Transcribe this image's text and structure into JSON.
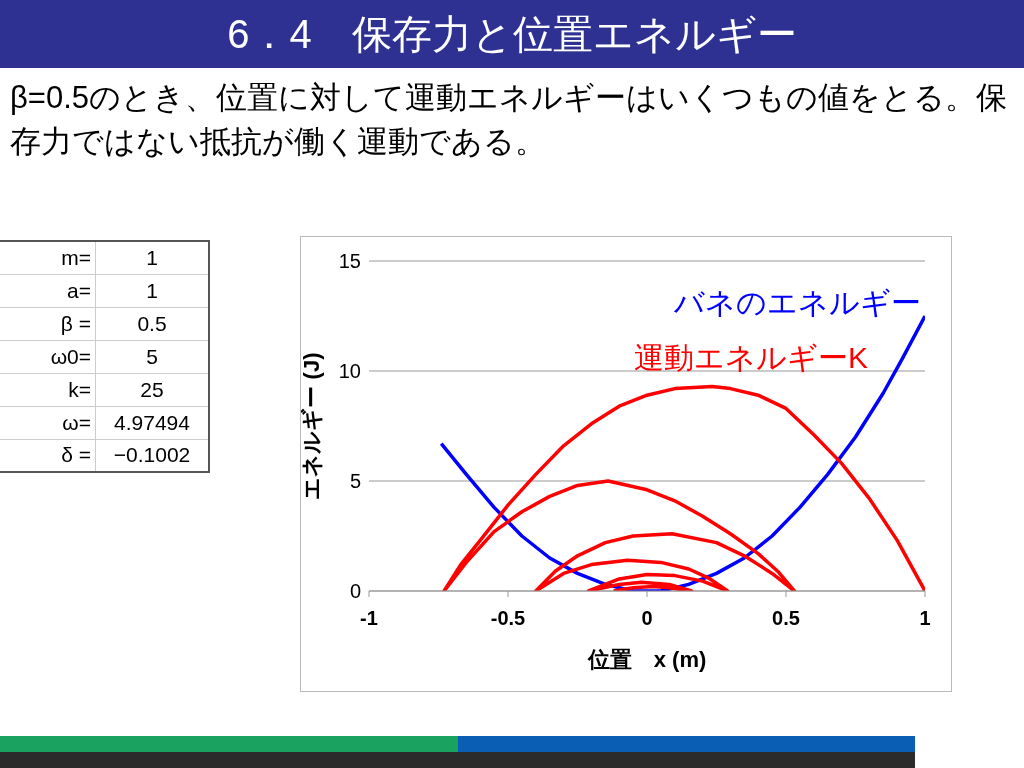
{
  "chart_data": {
    "type": "line",
    "title": "6．4　保存力と位置エネルギー",
    "subtitle": "β=0.5のとき、位置に対して運動エネルギーはいくつもの値をとる。保存力ではない抵抗が働く運動である。",
    "xlabel": "位置　x (m)",
    "ylabel": "エネルギー (J)",
    "xlim": [
      -1,
      1
    ],
    "xticks": [
      -1,
      -0.5,
      0,
      0.5,
      1
    ],
    "ylim": [
      0,
      15
    ],
    "yticks": [
      0,
      5,
      10,
      15
    ],
    "grid": "y",
    "legend": "top right",
    "marker": "none",
    "line_style": "solid",
    "annotations": [
      "m=",
      "1",
      "a=",
      "1",
      "β =",
      "0.5",
      "ω0=",
      "5",
      "k=",
      "25",
      "ω=",
      "4.97494",
      "δ =",
      "−0.1002"
    ],
    "series": [
      {
        "name": "バネのエネルギー",
        "color": "#0000ff",
        "x": [
          -0.74,
          -0.65,
          -0.55,
          -0.45,
          -0.35,
          -0.25,
          -0.15,
          -0.05,
          0.05,
          0.15,
          0.25,
          0.35,
          0.45,
          0.55,
          0.65,
          0.75,
          0.85,
          0.92,
          1
        ],
        "values": [
          6.7,
          5.3,
          3.8,
          2.5,
          1.5,
          0.8,
          0.3,
          0,
          0,
          0.3,
          0.8,
          1.5,
          2.5,
          3.8,
          5.3,
          7.0,
          9.0,
          10.6,
          12.5
        ]
      },
      {
        "name": "運動エネルギーK",
        "color": "#ff0000",
        "x": [
          1,
          0.9,
          0.8,
          0.7,
          0.6,
          0.5,
          0.4,
          0.3,
          0.235,
          0.1,
          0,
          -0.1,
          -0.2,
          -0.3,
          -0.4,
          -0.5,
          -0.6,
          -0.67,
          -0.73,
          -0.65,
          -0.55,
          -0.45,
          -0.35,
          -0.25,
          -0.14,
          0,
          0.1,
          0.2,
          0.3,
          0.4,
          0.47,
          0.53,
          0.45,
          0.35,
          0.25,
          0.09,
          -0.05,
          -0.15,
          -0.25,
          -0.33,
          -0.4,
          -0.3,
          -0.2,
          -0.07,
          0.05,
          0.15,
          0.22,
          0.29,
          0.2,
          0.1,
          0,
          -0.1,
          -0.21,
          -0.1,
          -0.02,
          0.08,
          0.16,
          0.08,
          0.02,
          -0.05,
          -0.12
        ],
        "values": [
          0,
          2.3,
          4.2,
          5.8,
          7.1,
          8.3,
          8.9,
          9.2,
          9.3,
          9.2,
          8.9,
          8.4,
          7.6,
          6.6,
          5.3,
          3.9,
          2.3,
          1.2,
          0,
          1.3,
          2.7,
          3.6,
          4.3,
          4.8,
          5.0,
          4.6,
          4.1,
          3.4,
          2.6,
          1.7,
          0.9,
          0,
          0.8,
          1.6,
          2.2,
          2.6,
          2.5,
          2.2,
          1.6,
          0.9,
          0,
          0.8,
          1.2,
          1.4,
          1.3,
          1.0,
          0.6,
          0,
          0.45,
          0.7,
          0.75,
          0.55,
          0,
          0.3,
          0.4,
          0.3,
          0,
          0.15,
          0.2,
          0.15,
          0
        ]
      }
    ]
  }
}
